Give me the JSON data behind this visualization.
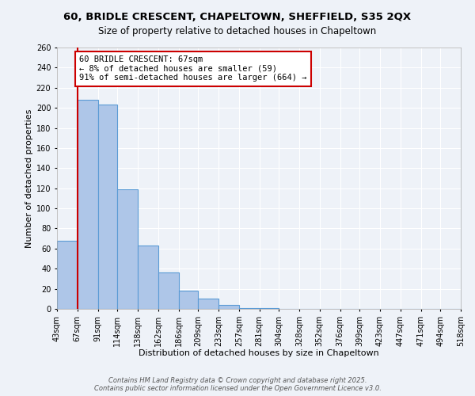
{
  "title": "60, BRIDLE CRESCENT, CHAPELTOWN, SHEFFIELD, S35 2QX",
  "subtitle": "Size of property relative to detached houses in Chapeltown",
  "xlabel": "Distribution of detached houses by size in Chapeltown",
  "ylabel": "Number of detached properties",
  "bin_edges": [
    43,
    67,
    91,
    114,
    138,
    162,
    186,
    209,
    233,
    257,
    281,
    304,
    328,
    352,
    376,
    399,
    423,
    447,
    471,
    494,
    518
  ],
  "bin_labels": [
    "43sqm",
    "67sqm",
    "91sqm",
    "114sqm",
    "138sqm",
    "162sqm",
    "186sqm",
    "209sqm",
    "233sqm",
    "257sqm",
    "281sqm",
    "304sqm",
    "328sqm",
    "352sqm",
    "376sqm",
    "399sqm",
    "423sqm",
    "447sqm",
    "471sqm",
    "494sqm",
    "518sqm"
  ],
  "counts": [
    68,
    208,
    203,
    119,
    63,
    36,
    18,
    10,
    4,
    1,
    1,
    0,
    0,
    0,
    0,
    0,
    0,
    0,
    0,
    0
  ],
  "bar_color": "#aec6e8",
  "bar_edge_color": "#5b9bd5",
  "property_value": 67,
  "property_line_color": "#cc0000",
  "annotation_line1": "60 BRIDLE CRESCENT: 67sqm",
  "annotation_line2": "← 8% of detached houses are smaller (59)",
  "annotation_line3": "91% of semi-detached houses are larger (664) →",
  "annotation_box_color": "#ffffff",
  "annotation_box_edge_color": "#cc0000",
  "ylim": [
    0,
    260
  ],
  "yticks": [
    0,
    20,
    40,
    60,
    80,
    100,
    120,
    140,
    160,
    180,
    200,
    220,
    240,
    260
  ],
  "background_color": "#eef2f8",
  "grid_color": "#ffffff",
  "footer_line1": "Contains HM Land Registry data © Crown copyright and database right 2025.",
  "footer_line2": "Contains public sector information licensed under the Open Government Licence v3.0.",
  "title_fontsize": 9.5,
  "subtitle_fontsize": 8.5,
  "axis_label_fontsize": 8,
  "tick_fontsize": 7,
  "annotation_fontsize": 7.5,
  "footer_fontsize": 6
}
